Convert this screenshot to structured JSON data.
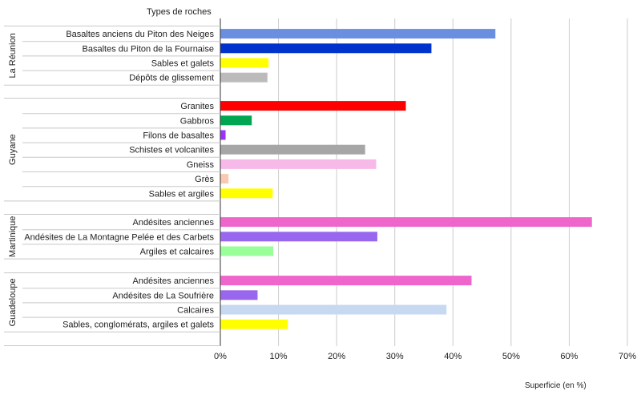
{
  "chart_data": {
    "type": "bar",
    "orientation": "horizontal",
    "title": "Types de roches",
    "xlabel": "Superficie (en %)",
    "xlim": [
      0,
      70
    ],
    "xticks": [
      0,
      10,
      20,
      30,
      40,
      50,
      60,
      70
    ],
    "tick_suffix": "%",
    "grid": true,
    "groups": [
      {
        "name": "La Réunion",
        "items": [
          {
            "label": "Basaltes anciens du Piton des Neiges",
            "value": 47.3,
            "color": "#6a8fe0"
          },
          {
            "label": "Basaltes du Piton de la Fournaise",
            "value": 36.3,
            "color": "#0033cc"
          },
          {
            "label": "Sables et galets",
            "value": 8.3,
            "color": "#ffff00"
          },
          {
            "label": "Dépôts de glissement",
            "value": 8.1,
            "color": "#bbbbbb"
          }
        ]
      },
      {
        "name": "Guyane",
        "items": [
          {
            "label": "Granites",
            "value": 31.9,
            "color": "#ff0000"
          },
          {
            "label": "Gabbros",
            "value": 5.4,
            "color": "#00a651"
          },
          {
            "label": "Filons de basaltes",
            "value": 0.9,
            "color": "#9933ff"
          },
          {
            "label": "Schistes et volcanites",
            "value": 24.9,
            "color": "#a6a6a6"
          },
          {
            "label": "Gneiss",
            "value": 26.8,
            "color": "#f7b9e8"
          },
          {
            "label": "Grès",
            "value": 1.4,
            "color": "#f9c9b1"
          },
          {
            "label": "Sables et argiles",
            "value": 9.0,
            "color": "#ffff00"
          }
        ]
      },
      {
        "name": "Martinique",
        "items": [
          {
            "label": "Andésites anciennes",
            "value": 63.9,
            "color": "#ee66cc"
          },
          {
            "label": "Andésites de La Montagne Pelée et des Carbets",
            "value": 27.0,
            "color": "#9966ee"
          },
          {
            "label": "Argiles et calcaires",
            "value": 9.1,
            "color": "#99ff99"
          }
        ]
      },
      {
        "name": "Guadeloupe",
        "items": [
          {
            "label": "Andésites anciennes",
            "value": 43.2,
            "color": "#ee66cc"
          },
          {
            "label": "Andésites de La Soufrière",
            "value": 6.4,
            "color": "#9966ee"
          },
          {
            "label": "Calcaires",
            "value": 38.9,
            "color": "#c6d9f1"
          },
          {
            "label": "Sables, conglomérats, argiles et galets",
            "value": 11.6,
            "color": "#ffff00"
          }
        ]
      }
    ]
  }
}
